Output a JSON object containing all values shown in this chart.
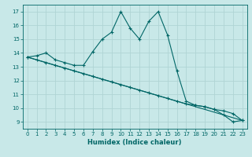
{
  "xlabel": "Humidex (Indice chaleur)",
  "ylabel": "",
  "background_color": "#c8e8e8",
  "grid_color": "#b0d4d4",
  "line_color": "#006666",
  "xlim": [
    -0.5,
    23.5
  ],
  "ylim": [
    8.5,
    17.5
  ],
  "xticks": [
    0,
    1,
    2,
    3,
    4,
    5,
    6,
    7,
    8,
    9,
    10,
    11,
    12,
    13,
    14,
    15,
    16,
    17,
    18,
    19,
    20,
    21,
    22,
    23
  ],
  "yticks": [
    9,
    10,
    11,
    12,
    13,
    14,
    15,
    16,
    17
  ],
  "series1_x": [
    0,
    1,
    2,
    3,
    4,
    5,
    6,
    7,
    8,
    9,
    10,
    11,
    12,
    13,
    14,
    15,
    16,
    17,
    18,
    19,
    20,
    21,
    22,
    23
  ],
  "series1_y": [
    13.7,
    13.8,
    14.0,
    13.5,
    13.3,
    13.1,
    13.1,
    14.1,
    15.0,
    15.5,
    17.0,
    15.8,
    15.0,
    16.3,
    17.0,
    15.3,
    12.7,
    10.5,
    10.2,
    10.1,
    9.9,
    9.5,
    9.0,
    9.1
  ],
  "series2_x": [
    0,
    1,
    2,
    3,
    4,
    5,
    6,
    7,
    8,
    9,
    10,
    11,
    12,
    13,
    14,
    15,
    16,
    17,
    18,
    19,
    20,
    21,
    22,
    23
  ],
  "series2_y": [
    13.7,
    13.5,
    13.3,
    13.1,
    12.9,
    12.7,
    12.5,
    12.3,
    12.1,
    11.9,
    11.7,
    11.5,
    11.3,
    11.1,
    10.9,
    10.7,
    10.5,
    10.3,
    10.2,
    10.1,
    9.9,
    9.8,
    9.6,
    9.1
  ],
  "series3_x": [
    0,
    23
  ],
  "series3_y": [
    13.7,
    9.1
  ],
  "marker": "+",
  "tick_fontsize": 5,
  "xlabel_fontsize": 6,
  "lw": 0.8,
  "ms": 3
}
